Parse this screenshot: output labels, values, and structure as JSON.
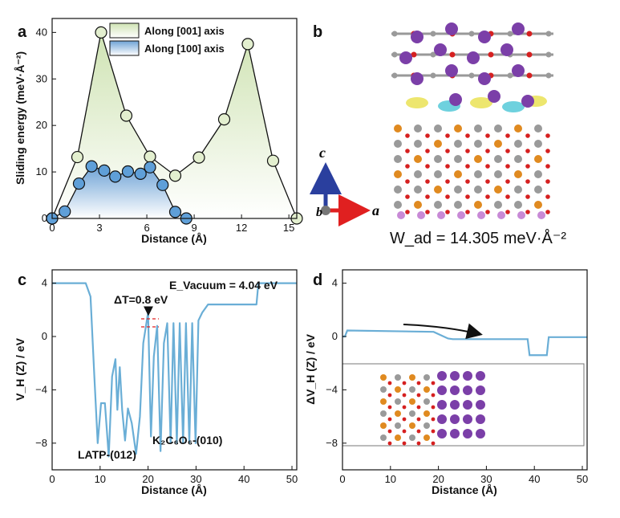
{
  "panel_labels": {
    "a": "a",
    "b": "b",
    "c": "c",
    "d": "d"
  },
  "colors": {
    "green_fill": "#cfe3b3",
    "blue_fill": "#6fa3d6",
    "marker_green": "#e3efcf",
    "marker_blue": "#5f9fd8",
    "trace": "#6aaed6",
    "atom_purple": "#7b3fa8",
    "atom_gray": "#9a9a9a",
    "atom_red": "#d62020",
    "atom_orange": "#e08a20"
  },
  "chart_data": [
    {
      "panel": "a",
      "type": "line",
      "xlabel": "Distance (Å)",
      "ylabel": "Sliding energy (meV·Å⁻²)",
      "xlim": [
        0,
        15.5
      ],
      "ylim": [
        0,
        43
      ],
      "xticks": [
        0,
        3,
        6,
        9,
        12,
        15
      ],
      "yticks": [
        0,
        10,
        20,
        30,
        40
      ],
      "legend": "top-center",
      "series": [
        {
          "name": "Along [001] axis",
          "color": "#cfe3b3",
          "x": [
            0,
            1.6,
            3.1,
            4.7,
            6.2,
            7.8,
            9.3,
            10.9,
            12.4,
            14.0,
            15.5
          ],
          "y": [
            0,
            13.2,
            40.0,
            22.1,
            13.3,
            9.2,
            13.1,
            21.3,
            37.5,
            12.4,
            0
          ]
        },
        {
          "name": "Along [100] axis",
          "color": "#6fa3d6",
          "x": [
            0,
            0.8,
            1.7,
            2.5,
            3.3,
            4.0,
            4.8,
            5.6,
            6.2,
            7.0,
            7.8,
            8.5
          ],
          "y": [
            0,
            1.5,
            7.5,
            11.2,
            10.3,
            9.0,
            10.1,
            9.6,
            11.0,
            7.2,
            1.4,
            0
          ]
        }
      ]
    },
    {
      "panel": "c",
      "type": "line",
      "xlabel": "Distance (Å)",
      "ylabel": "V_H (Z) / eV",
      "xlim": [
        0,
        51
      ],
      "ylim": [
        -10,
        5
      ],
      "xticks": [
        0,
        10,
        20,
        30,
        40,
        50
      ],
      "yticks": [
        -8,
        -4,
        0,
        4
      ],
      "series": [
        {
          "x": [
            0,
            7,
            8,
            8.8,
            9.5,
            10.2,
            11,
            11.8,
            12.5,
            13.2,
            13.6,
            14.1,
            14.6,
            15.2,
            15.8,
            16.6,
            17.5,
            18.3,
            19.0,
            20.0,
            20.6,
            21.2,
            21.9,
            22.6,
            23.3,
            24.0,
            24.7,
            25.3,
            26.0,
            26.6,
            27.3,
            27.9,
            28.6,
            29.2,
            29.9,
            30.5,
            31.3,
            32.5,
            42.6,
            43.0,
            51.0
          ],
          "y": [
            4.0,
            4.0,
            3.0,
            -3.0,
            -8.0,
            -5.0,
            -5.0,
            -9.0,
            -3.0,
            -1.7,
            -5.5,
            -2.3,
            -5.5,
            -7.8,
            -5.4,
            -6.5,
            -8.8,
            -6.0,
            -0.5,
            1.8,
            -7.5,
            -1.5,
            0.8,
            -8.6,
            -0.5,
            1.0,
            -8.0,
            1.0,
            -8.0,
            1.0,
            -8.0,
            1.0,
            -8.0,
            1.0,
            -8.0,
            1.2,
            1.8,
            2.4,
            2.4,
            4.0,
            4.0
          ]
        }
      ],
      "annotations": {
        "delta_t": "ΔT=0.8 eV",
        "e_vacuum": "E_Vacuum = 4.04 eV",
        "latp": "LATP-(012)",
        "k2c6o6": "K₂C₆O₆-(010)"
      }
    },
    {
      "panel": "d",
      "type": "line",
      "xlabel": "Distance (Å)",
      "ylabel": "ΔV_H (Z) / eV",
      "xlim": [
        0,
        51
      ],
      "ylim": [
        -10,
        5
      ],
      "xticks": [
        0,
        10,
        20,
        30,
        40,
        50
      ],
      "yticks": [
        -8,
        -4,
        0,
        4
      ],
      "series": [
        {
          "x": [
            0,
            0.5,
            1.0,
            19,
            20.5,
            22,
            23,
            38.6,
            39.0,
            42.6,
            43.0,
            51
          ],
          "y": [
            0.0,
            0.0,
            0.45,
            0.35,
            0.1,
            -0.15,
            -0.2,
            -0.2,
            -1.4,
            -1.4,
            -0.05,
            -0.05
          ]
        }
      ]
    }
  ],
  "panel_b": {
    "w_ad": "W_ad = 14.305 meV·Å⁻²",
    "axis_c": "c",
    "axis_a": "a",
    "axis_b": "b"
  }
}
